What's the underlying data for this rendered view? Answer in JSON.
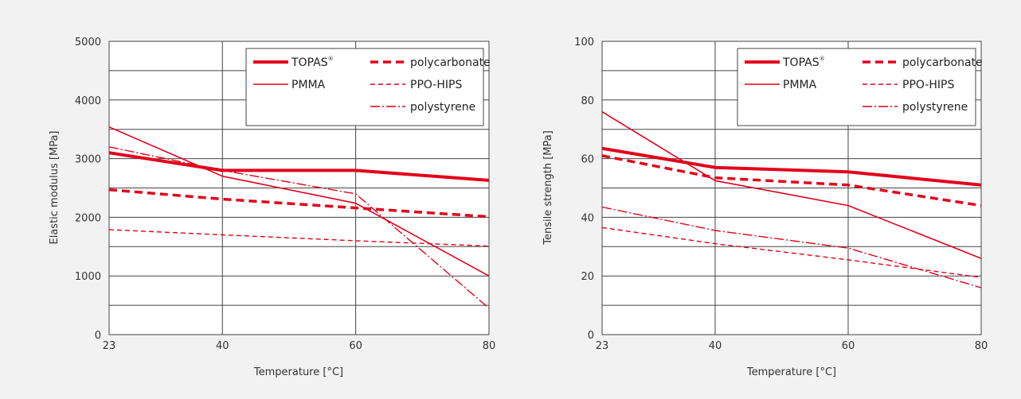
{
  "chart_data": [
    {
      "type": "line",
      "xlabel": "Temperature [°C]",
      "ylabel": "Elastic modulus [MPa]",
      "x": [
        23,
        40,
        60,
        80
      ],
      "xlim": [
        23,
        80
      ],
      "ylim": [
        0,
        5000
      ],
      "xticks": [
        23,
        40,
        60,
        80
      ],
      "yticks": [
        0,
        1000,
        2000,
        3000,
        4000,
        5000
      ],
      "grid": true,
      "legend_position": "top-right",
      "series": [
        {
          "name": "TOPAS",
          "values": [
            3100,
            2800,
            2800,
            2630
          ]
        },
        {
          "name": "polycarbonate",
          "values": [
            2470,
            2310,
            2160,
            2010
          ]
        },
        {
          "name": "PMMA",
          "values": [
            3540,
            2700,
            2240,
            1000
          ]
        },
        {
          "name": "PPO-HIPS",
          "values": [
            1790,
            1700,
            1600,
            1510
          ]
        },
        {
          "name": "polystyrene",
          "values": [
            3200,
            2800,
            2400,
            450
          ]
        }
      ]
    },
    {
      "type": "line",
      "xlabel": "Temperature [°C]",
      "ylabel": "Tensile strength [MPa]",
      "x": [
        23,
        40,
        60,
        80
      ],
      "xlim": [
        23,
        80
      ],
      "ylim": [
        0,
        100
      ],
      "xticks": [
        23,
        40,
        60,
        80
      ],
      "yticks": [
        0,
        20,
        40,
        60,
        80,
        100
      ],
      "grid": true,
      "legend_position": "top-right",
      "series": [
        {
          "name": "TOPAS",
          "values": [
            63.5,
            57,
            55.5,
            51
          ]
        },
        {
          "name": "polycarbonate",
          "values": [
            61,
            53.5,
            51,
            44
          ]
        },
        {
          "name": "PMMA",
          "values": [
            76,
            52.5,
            44,
            26
          ]
        },
        {
          "name": "PPO-HIPS",
          "values": [
            36.5,
            31,
            25.5,
            19.5
          ]
        },
        {
          "name": "polystyrene",
          "values": [
            43.5,
            35.5,
            29.5,
            16
          ]
        }
      ]
    }
  ],
  "legend_extras": {
    "trademark": "®"
  },
  "colors": {
    "series": "#e3001b",
    "grid": "#444444",
    "background": "#f2f2f2",
    "plot": "#ffffff"
  }
}
